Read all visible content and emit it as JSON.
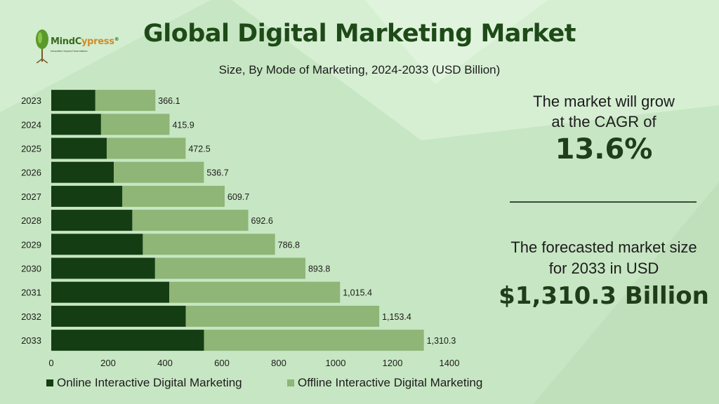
{
  "brand": {
    "name_part1": "MindC",
    "name_part2": "ypress",
    "reg": "®",
    "tagline": "education beyond boundaries"
  },
  "title": "Global Digital Marketing Market",
  "subtitle": "Size, By Mode of Marketing, 2024-2033 (USD Billion)",
  "callouts": {
    "cagr_line1": "The market will grow",
    "cagr_line2": "at the CAGR of",
    "cagr_value": "13.6%",
    "forecast_line1": "The forecasted market size",
    "forecast_line2": "for 2033 in USD",
    "forecast_value": "$1,310.3 Billion"
  },
  "colors": {
    "online": "#153d14",
    "offline": "#8fb577",
    "background": "#c7e6c3"
  },
  "chart_data": {
    "type": "bar",
    "orientation": "horizontal",
    "stacked": true,
    "categories": [
      "2023",
      "2024",
      "2025",
      "2026",
      "2027",
      "2028",
      "2029",
      "2030",
      "2031",
      "2032",
      "2033"
    ],
    "series": [
      {
        "name": "Online Interactive Digital Marketing",
        "values": [
          155,
          175,
          195,
          220,
          250,
          285,
          322,
          365,
          415,
          473,
          537
        ]
      },
      {
        "name": "Offline Interactive Digital Marketing",
        "values": [
          211.1,
          240.9,
          277.5,
          316.7,
          359.7,
          407.6,
          464.8,
          528.8,
          600.4,
          680.4,
          773.3
        ]
      }
    ],
    "totals": [
      366.1,
      415.9,
      472.5,
      536.7,
      609.7,
      692.6,
      786.8,
      893.8,
      1015.4,
      1153.4,
      1310.3
    ],
    "total_labels": [
      "366.1",
      "415.9",
      "472.5",
      "536.7",
      "609.7",
      "692.6",
      "786.8",
      "893.8",
      "1,015.4",
      "1,153.4",
      "1,310.3"
    ],
    "xlim": [
      0,
      1400
    ],
    "xticks": [
      0,
      200,
      400,
      600,
      800,
      1000,
      1200,
      1400
    ],
    "legend_position": "bottom"
  }
}
